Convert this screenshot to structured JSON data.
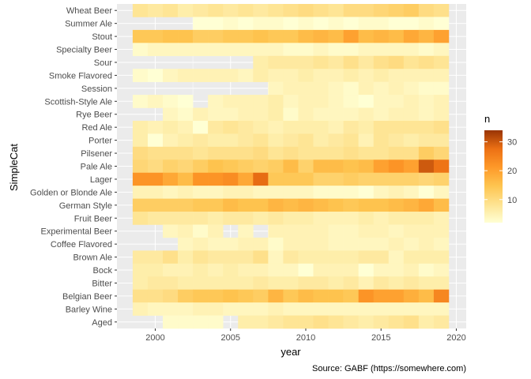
{
  "chart_data": {
    "type": "heatmap",
    "xlabel": "year",
    "ylabel": "SimpleCat",
    "caption": "Source: GABF (https://somewhere.com)",
    "legend": {
      "title": "n",
      "position": "right",
      "ticks": [
        10,
        20,
        30
      ],
      "range": [
        0,
        34
      ]
    },
    "x_years": [
      1999,
      2000,
      2001,
      2002,
      2003,
      2004,
      2005,
      2006,
      2007,
      2008,
      2009,
      2010,
      2011,
      2012,
      2013,
      2014,
      2015,
      2016,
      2017,
      2018,
      2019
    ],
    "x_ticks": [
      2000,
      2005,
      2010,
      2015,
      2020
    ],
    "xlim": [
      1998,
      2020.5
    ],
    "grid": true,
    "colors": {
      "low": "#ffffd4",
      "mid1": "#fee391",
      "mid2": "#fec44f",
      "mid3": "#fe9929",
      "mid4": "#ec7014",
      "high": "#993404",
      "panel": "#ebebeb",
      "grid": "#ffffff"
    },
    "categories": [
      "Wheat Beer",
      "Summer Ale",
      "Stout",
      "Specialty Beer",
      "Sour",
      "Smoke Flavored",
      "Session",
      "Scottish-Style Ale",
      "Rye Beer",
      "Red Ale",
      "Porter",
      "Pilsener",
      "Pale Ale",
      "Lager",
      "Golden or Blonde Ale",
      "German Style",
      "Fruit Beer",
      "Experimental Beer",
      "Coffee Flavored",
      "Brown Ale",
      "Bock",
      "Bitter",
      "Belgian Beer",
      "Barley Wine",
      "Aged"
    ],
    "rows": [
      {
        "name": "Wheat Beer",
        "values": [
          8,
          7,
          8,
          6,
          7,
          8,
          7,
          8,
          7,
          8,
          9,
          10,
          9,
          8,
          10,
          10,
          11,
          12,
          13,
          10,
          9
        ]
      },
      {
        "name": "Summer Ale",
        "values": [
          null,
          null,
          null,
          null,
          2,
          2,
          3,
          2,
          3,
          3,
          2,
          3,
          2,
          3,
          2,
          3,
          3,
          2,
          2,
          3,
          2
        ]
      },
      {
        "name": "Stout",
        "values": [
          14,
          14,
          15,
          15,
          13,
          13,
          14,
          14,
          15,
          14,
          14,
          16,
          17,
          16,
          20,
          16,
          17,
          16,
          19,
          17,
          20
        ]
      },
      {
        "name": "Specialty Beer",
        "values": [
          3,
          4,
          4,
          4,
          4,
          4,
          4,
          4,
          4,
          4,
          3,
          3,
          4,
          3,
          3,
          4,
          4,
          4,
          4,
          3,
          4
        ]
      },
      {
        "name": "Sour",
        "values": [
          null,
          null,
          null,
          null,
          null,
          null,
          null,
          null,
          6,
          7,
          7,
          7,
          8,
          7,
          9,
          7,
          9,
          10,
          8,
          9,
          8
        ]
      },
      {
        "name": "Smoke Flavored",
        "values": [
          3,
          2,
          4,
          5,
          5,
          5,
          5,
          4,
          6,
          5,
          5,
          6,
          5,
          5,
          6,
          5,
          6,
          5,
          5,
          5,
          5
        ]
      },
      {
        "name": "Session",
        "values": [
          null,
          null,
          null,
          null,
          null,
          null,
          null,
          null,
          null,
          4,
          5,
          5,
          5,
          4,
          3,
          5,
          4,
          5,
          4,
          3,
          3
        ]
      },
      {
        "name": "Scottish-Style Ale",
        "values": [
          3,
          4,
          3,
          2,
          null,
          4,
          5,
          5,
          5,
          6,
          4,
          5,
          5,
          4,
          3,
          2,
          4,
          4,
          5,
          4,
          5
        ]
      },
      {
        "name": "Rye Beer",
        "values": [
          null,
          null,
          4,
          3,
          5,
          4,
          4,
          5,
          5,
          6,
          3,
          5,
          4,
          4,
          4,
          5,
          4,
          5,
          5,
          4,
          5
        ]
      },
      {
        "name": "Red Ale",
        "values": [
          6,
          5,
          6,
          5,
          2,
          7,
          8,
          7,
          6,
          5,
          6,
          6,
          6,
          5,
          7,
          6,
          8,
          8,
          8,
          8,
          9
        ]
      },
      {
        "name": "Porter",
        "values": [
          6,
          2,
          5,
          6,
          7,
          6,
          6,
          7,
          8,
          6,
          7,
          8,
          6,
          7,
          8,
          5,
          8,
          7,
          6,
          7,
          7
        ]
      },
      {
        "name": "Pilsener",
        "values": [
          10,
          9,
          9,
          9,
          8,
          9,
          9,
          9,
          10,
          8,
          9,
          8,
          8,
          8,
          9,
          8,
          8,
          9,
          9,
          13,
          11
        ]
      },
      {
        "name": "Pale Ale",
        "values": [
          11,
          10,
          12,
          11,
          13,
          15,
          14,
          13,
          12,
          13,
          16,
          12,
          16,
          16,
          15,
          16,
          20,
          22,
          20,
          30,
          27
        ]
      },
      {
        "name": "Lager",
        "values": [
          22,
          22,
          19,
          16,
          22,
          22,
          23,
          19,
          28,
          14,
          14,
          14,
          12,
          12,
          13,
          12,
          12,
          12,
          12,
          11,
          12
        ]
      },
      {
        "name": "Golden or Blonde Ale",
        "values": [
          5,
          5,
          4,
          5,
          4,
          4,
          5,
          5,
          4,
          4,
          4,
          4,
          3,
          3,
          3,
          2,
          4,
          5,
          4,
          2,
          4
        ]
      },
      {
        "name": "German Style",
        "values": [
          13,
          13,
          13,
          13,
          14,
          14,
          16,
          15,
          15,
          17,
          16,
          17,
          16,
          15,
          14,
          15,
          15,
          16,
          17,
          19,
          16
        ]
      },
      {
        "name": "Fruit Beer",
        "values": [
          8,
          7,
          7,
          7,
          7,
          6,
          7,
          7,
          6,
          7,
          6,
          6,
          5,
          5,
          5,
          6,
          5,
          6,
          6,
          6,
          5
        ]
      },
      {
        "name": "Experimental Beer",
        "values": [
          null,
          null,
          4,
          5,
          3,
          5,
          null,
          4,
          null,
          5,
          5,
          5,
          5,
          4,
          4,
          5,
          5,
          4,
          5,
          5,
          5
        ]
      },
      {
        "name": "Coffee Flavored",
        "values": [
          null,
          null,
          null,
          4,
          5,
          4,
          4,
          5,
          5,
          3,
          5,
          5,
          5,
          4,
          4,
          4,
          4,
          5,
          4,
          5,
          4
        ]
      },
      {
        "name": "Brown Ale",
        "values": [
          7,
          7,
          9,
          6,
          8,
          7,
          7,
          7,
          9,
          4,
          7,
          6,
          6,
          6,
          6,
          7,
          7,
          4,
          6,
          6,
          6
        ]
      },
      {
        "name": "Bock",
        "values": [
          6,
          6,
          5,
          5,
          6,
          5,
          6,
          5,
          5,
          4,
          4,
          2,
          5,
          5,
          5,
          2,
          4,
          4,
          5,
          3,
          4
        ]
      },
      {
        "name": "Bitter",
        "values": [
          6,
          7,
          7,
          6,
          6,
          6,
          6,
          6,
          7,
          6,
          6,
          7,
          7,
          6,
          7,
          5,
          7,
          6,
          7,
          6,
          6
        ]
      },
      {
        "name": "Belgian Beer",
        "values": [
          9,
          9,
          10,
          13,
          14,
          14,
          15,
          14,
          13,
          17,
          14,
          16,
          15,
          15,
          14,
          22,
          20,
          20,
          18,
          16,
          24
        ]
      },
      {
        "name": "Barley Wine",
        "values": [
          5,
          4,
          4,
          4,
          5,
          5,
          4,
          4,
          4,
          5,
          4,
          4,
          4,
          4,
          4,
          4,
          4,
          4,
          4,
          4,
          4
        ]
      },
      {
        "name": "Aged",
        "values": [
          null,
          null,
          3,
          3,
          3,
          3,
          null,
          6,
          6,
          7,
          8,
          8,
          9,
          8,
          7,
          6,
          7,
          8,
          9,
          6,
          7
        ]
      }
    ]
  }
}
